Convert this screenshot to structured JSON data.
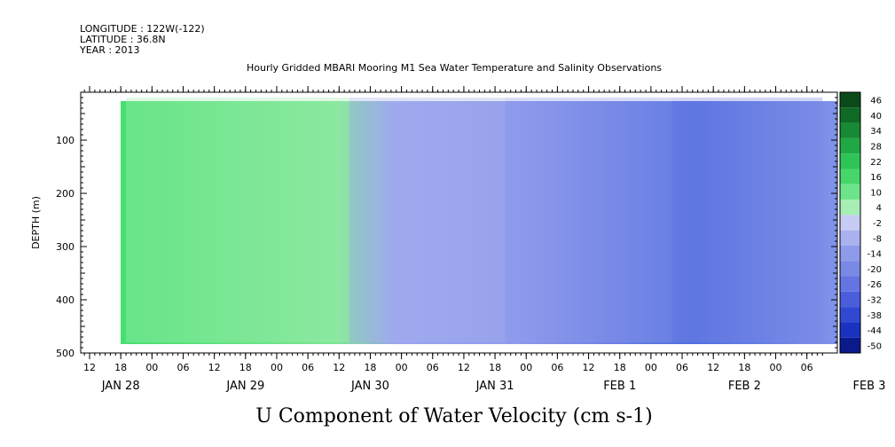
{
  "header": {
    "longitude": "LONGITUDE : 122W(-122)",
    "latitude": "LATITUDE : 36.8N",
    "year": "YEAR : 2013"
  },
  "chart_data": {
    "type": "heatmap",
    "title": "Hourly Gridded MBARI Mooring M1 Sea Water Temperature and Salinity Observations",
    "xlabel": "U Component of Water Velocity (cm s-1)",
    "ylabel": "DEPTH (m)",
    "ylim": [
      500,
      10
    ],
    "y_ticks": [
      100,
      200,
      300,
      400,
      500
    ],
    "x_hour_ticks": [
      "12",
      "18",
      "00",
      "06",
      "12",
      "18",
      "00",
      "06",
      "12",
      "18",
      "00",
      "06",
      "12",
      "18",
      "00",
      "06",
      "12",
      "18",
      "00",
      "06",
      "12",
      "18",
      "00",
      "06"
    ],
    "x_date_labels": [
      "JAN 28",
      "JAN 29",
      "JAN 30",
      "JAN 31",
      "FEB  1",
      "FEB  2",
      "FEB  3"
    ],
    "x_range_hours": [
      0,
      141
    ],
    "data_start_hour": 7,
    "colorbar_levels": [
      "46",
      "40",
      "34",
      "28",
      "22",
      "16",
      "10",
      "4",
      "-2",
      "-8",
      "-14",
      "-20",
      "-26",
      "-32",
      "-38",
      "-44",
      "-50"
    ],
    "colorbar_range": [
      -50,
      50
    ],
    "description_regions": [
      {
        "hours": [
          7,
          50
        ],
        "depth": [
          20,
          480
        ],
        "u_approx": 6
      },
      {
        "hours": [
          50,
          80
        ],
        "depth": [
          20,
          480
        ],
        "u_approx": -6
      },
      {
        "hours": [
          80,
          112
        ],
        "depth": [
          20,
          480
        ],
        "u_approx": -16
      },
      {
        "hours": [
          112,
          141
        ],
        "depth": [
          20,
          480
        ],
        "u_approx": -22
      }
    ]
  }
}
